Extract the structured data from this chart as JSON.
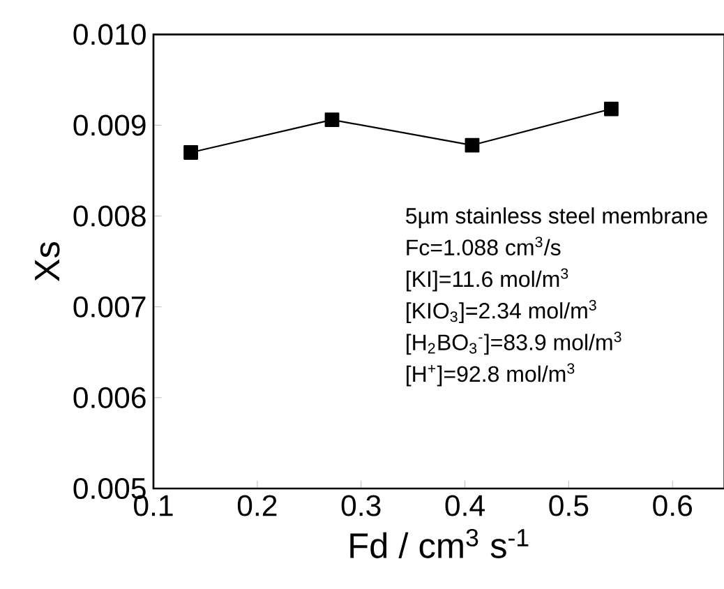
{
  "chart_data": {
    "type": "line",
    "xlabel": "Fd / cm$^{3}$ s$^{-1}$",
    "ylabel": "Xs",
    "x": [
      0.136,
      0.272,
      0.407,
      0.541
    ],
    "series": [
      {
        "color": "#000000",
        "values": [
          0.0087,
          0.00906,
          0.00878,
          0.00918
        ]
      }
    ],
    "xlim": [
      0.1,
      0.65
    ],
    "xticks": [
      0.1,
      0.2,
      0.3,
      0.4,
      0.5,
      0.6
    ],
    "ylim": [
      0.005,
      0.01
    ],
    "yticks": [
      {
        "value": 0.005,
        "label": "0.005"
      },
      {
        "value": 0.006,
        "label": "0.006"
      },
      {
        "value": 0.007,
        "label": "0.007"
      },
      {
        "value": 0.008,
        "label": "0.008"
      },
      {
        "value": 0.009,
        "label": "0.009"
      },
      {
        "value": 0.01,
        "label": "0.010"
      }
    ],
    "marker": "square",
    "line_style": "solid",
    "annotations": [
      "5µm stainless steel membrane",
      "Fc=1.088 cm$^{3}$/s",
      "[KI]=11.6 mol/m$^{3}$",
      "[KIO$_{3}$]=2.34 mol/m$^{3}$",
      "[H$_{2}$BO$_{3}$$^{-}$]=83.9 mol/m$^{3}$",
      "[H$^{+}$]=92.8 mol/m$^{3}$"
    ]
  }
}
